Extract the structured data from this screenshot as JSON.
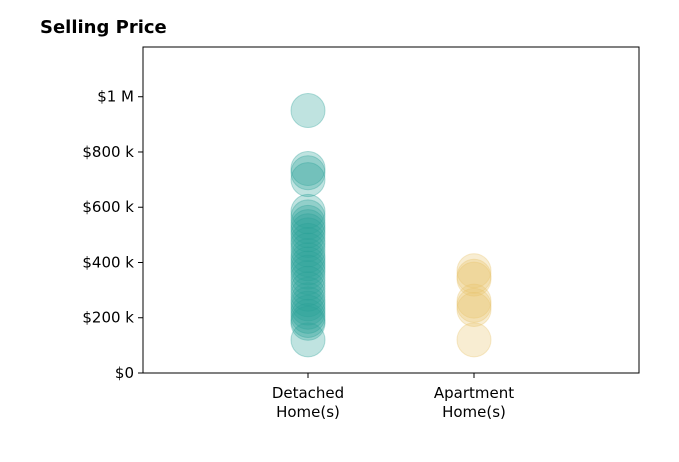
{
  "chart_data": {
    "type": "scatter",
    "title": "Selling Price",
    "xlabel": "",
    "ylabel": "",
    "categories": [
      [
        "Detached",
        "Home(s)"
      ],
      [
        "Apartment",
        "Home(s)"
      ]
    ],
    "ylim": [
      0,
      1180000
    ],
    "y_ticks": [
      {
        "value": 0,
        "label": "$0"
      },
      {
        "value": 200000,
        "label": "$200 k"
      },
      {
        "value": 400000,
        "label": "$400 k"
      },
      {
        "value": 600000,
        "label": "$600 k"
      },
      {
        "value": 800000,
        "label": "$800 k"
      },
      {
        "value": 1000000,
        "label": "$1 M"
      }
    ],
    "grid": false,
    "series": [
      {
        "category_index": 0,
        "color": "#2aa198",
        "alpha": 0.3,
        "values": [
          950000,
          740000,
          725000,
          700000,
          585000,
          565000,
          545000,
          530000,
          515000,
          500000,
          480000,
          465000,
          445000,
          425000,
          410000,
          395000,
          380000,
          365000,
          345000,
          325000,
          305000,
          285000,
          265000,
          250000,
          235000,
          220000,
          205000,
          190000,
          180000,
          120000
        ]
      },
      {
        "category_index": 1,
        "color": "#e9c46a",
        "alpha": 0.3,
        "values": [
          370000,
          350000,
          340000,
          260000,
          245000,
          230000,
          120000
        ]
      }
    ]
  }
}
